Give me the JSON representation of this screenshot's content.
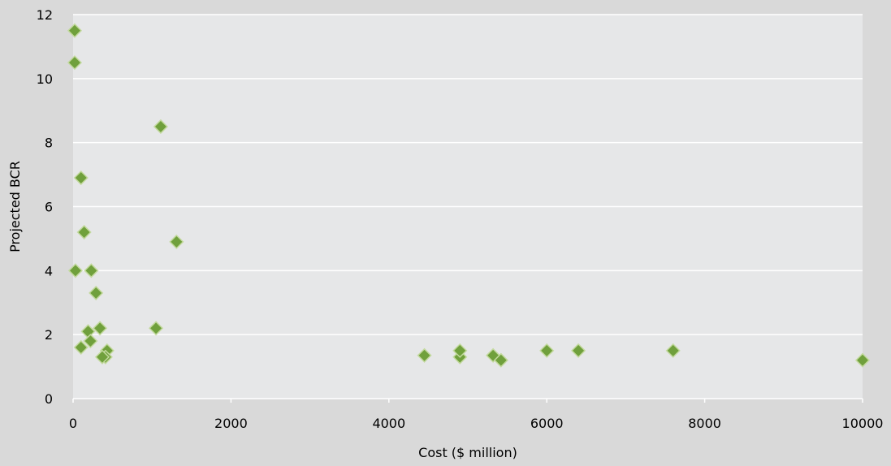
{
  "chart_data": {
    "type": "scatter",
    "title": "",
    "xlabel": "Cost ($ million)",
    "ylabel": "Projected BCR",
    "xlim": [
      0,
      10000
    ],
    "ylim": [
      0,
      12
    ],
    "x_ticks": [
      0,
      2000,
      4000,
      6000,
      8000,
      10000
    ],
    "y_ticks": [
      0,
      2,
      4,
      6,
      8,
      10,
      12
    ],
    "grid": "horizontal",
    "legend": "none",
    "marker": "diamond",
    "colors": {
      "background": "#d9d9d9",
      "plot_area": "#e6e7e8",
      "grid": "#ffffff",
      "marker_fill": "#70a03c",
      "marker_edge": "#c3d99e"
    },
    "series": [
      {
        "points": [
          {
            "x": 20,
            "y": 11.5
          },
          {
            "x": 20,
            "y": 10.5
          },
          {
            "x": 1110,
            "y": 8.5
          },
          {
            "x": 100,
            "y": 6.9
          },
          {
            "x": 140,
            "y": 5.2
          },
          {
            "x": 1310,
            "y": 4.9
          },
          {
            "x": 30,
            "y": 4.0
          },
          {
            "x": 230,
            "y": 4.0
          },
          {
            "x": 290,
            "y": 3.3
          },
          {
            "x": 190,
            "y": 2.1
          },
          {
            "x": 340,
            "y": 2.2
          },
          {
            "x": 1050,
            "y": 2.2
          },
          {
            "x": 220,
            "y": 1.8
          },
          {
            "x": 100,
            "y": 1.6
          },
          {
            "x": 430,
            "y": 1.5
          },
          {
            "x": 410,
            "y": 1.3
          },
          {
            "x": 370,
            "y": 1.3
          },
          {
            "x": 4450,
            "y": 1.35
          },
          {
            "x": 4900,
            "y": 1.3
          },
          {
            "x": 4900,
            "y": 1.5
          },
          {
            "x": 5320,
            "y": 1.35
          },
          {
            "x": 5420,
            "y": 1.2
          },
          {
            "x": 6000,
            "y": 1.5
          },
          {
            "x": 6400,
            "y": 1.5
          },
          {
            "x": 7600,
            "y": 1.5
          },
          {
            "x": 10000,
            "y": 1.2
          }
        ]
      }
    ]
  }
}
